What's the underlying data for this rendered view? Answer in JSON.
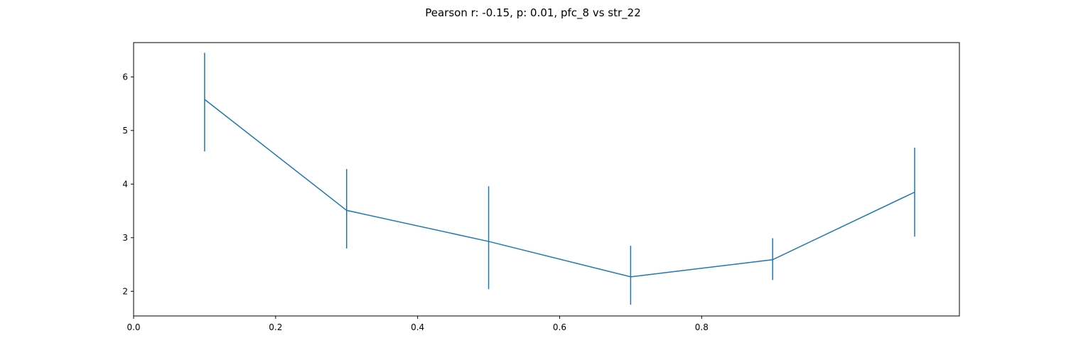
{
  "chart_data": {
    "type": "line",
    "title": "Pearson r: -0.15, p: 0.01, pfc_8 vs str_22",
    "xlabel": "",
    "ylabel": "",
    "x": [
      0.1,
      0.3,
      0.5,
      0.7,
      0.9,
      1.1
    ],
    "series": [
      {
        "values": [
          5.58,
          3.51,
          2.93,
          2.27,
          2.59,
          3.85
        ],
        "err_low": [
          4.61,
          2.8,
          2.04,
          1.75,
          2.21,
          3.02
        ],
        "err_high": [
          6.45,
          4.28,
          3.96,
          2.85,
          2.99,
          4.68
        ],
        "color": "#1f77b4"
      }
    ],
    "xlim": [
      0.0,
      1.163
    ],
    "ylim": [
      1.54,
      6.64
    ],
    "xticks": [
      0.0,
      0.2,
      0.4,
      0.6,
      0.8
    ],
    "xtick_labels": [
      "0.0",
      "0.2",
      "0.4",
      "0.6",
      "0.8"
    ],
    "yticks": [
      2,
      3,
      4,
      5,
      6
    ],
    "ytick_labels": [
      "2",
      "3",
      "4",
      "5",
      "6"
    ],
    "grid": false,
    "legend": "none"
  }
}
